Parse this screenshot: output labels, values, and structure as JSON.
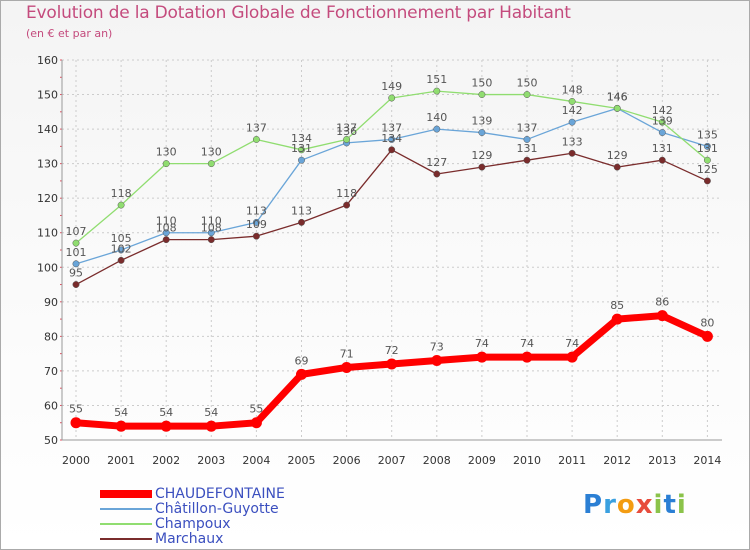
{
  "title": "Evolution de la Dotation Globale de Fonctionnement par Habitant",
  "subtitle": "(en € et par an)",
  "logo_letters": [
    "P",
    "r",
    "o",
    "x",
    "i",
    "t",
    "i"
  ],
  "colors": {
    "title": "#c44b7d",
    "legend_text": "#3b4fbf",
    "grid": "#cccccc",
    "logo": [
      "#2b7fd4",
      "#3aa0e0",
      "#f39c12",
      "#e74c3c",
      "#8bc34a",
      "#2b7fd4",
      "#8bc34a"
    ]
  },
  "chart_data": {
    "type": "line",
    "title": "Evolution de la Dotation Globale de Fonctionnement par Habitant",
    "subtitle": "(en € et par an)",
    "xlabel": "",
    "ylabel": "",
    "categories": [
      "2000",
      "2001",
      "2002",
      "2003",
      "2004",
      "2005",
      "2006",
      "2007",
      "2008",
      "2009",
      "2010",
      "2011",
      "2012",
      "2013",
      "2014"
    ],
    "ylim": [
      50,
      160
    ],
    "yticks": [
      "50",
      "60",
      "70",
      "80",
      "90",
      "100",
      "110",
      "120",
      "130",
      "140",
      "150",
      "160"
    ],
    "grid": true,
    "legend_position": "bottom-left",
    "series": [
      {
        "name": "CHAUDEFONTAINE",
        "color": "#ff0000",
        "values": [
          55,
          54,
          54,
          54,
          55,
          69,
          71,
          72,
          73,
          74,
          74,
          74,
          85,
          86,
          80
        ]
      },
      {
        "name": "Châtillon-Guyotte",
        "color": "#6aa5d8",
        "values": [
          101,
          105,
          110,
          110,
          113,
          131,
          136,
          137,
          140,
          139,
          137,
          142,
          146,
          139,
          135
        ]
      },
      {
        "name": "Champoux",
        "color": "#90dd70",
        "values": [
          107,
          118,
          130,
          130,
          137,
          134,
          137,
          149,
          151,
          150,
          150,
          148,
          146,
          142,
          131
        ]
      },
      {
        "name": "Marchaux",
        "color": "#7a2c2c",
        "values": [
          95,
          102,
          108,
          108,
          109,
          113,
          118,
          134,
          127,
          129,
          131,
          133,
          129,
          131,
          125
        ]
      }
    ]
  }
}
